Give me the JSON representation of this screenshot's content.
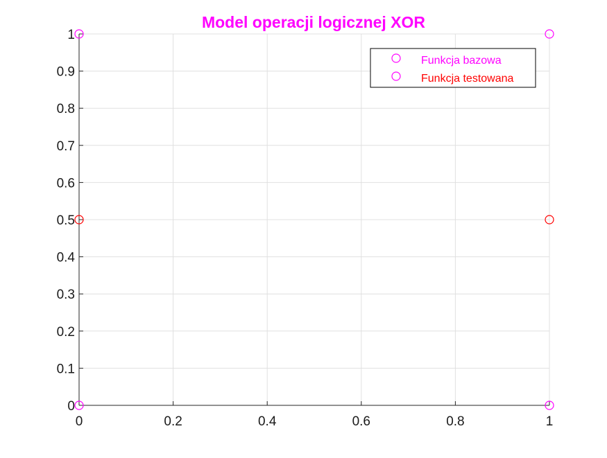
{
  "chart_data": {
    "type": "scatter",
    "title": "Model operacji logicznej XOR",
    "xlabel": "",
    "ylabel": "",
    "xlim": [
      0,
      1
    ],
    "ylim": [
      0,
      1
    ],
    "xticks": [
      0,
      0.2,
      0.4,
      0.6,
      0.8,
      1
    ],
    "xtick_labels": [
      "0",
      "0.2",
      "0.4",
      "0.6",
      "0.8",
      "1"
    ],
    "yticks": [
      0,
      0.1,
      0.2,
      0.3,
      0.4,
      0.5,
      0.6,
      0.7,
      0.8,
      0.9,
      1
    ],
    "ytick_labels": [
      "0",
      "0.1",
      "0.2",
      "0.3",
      "0.4",
      "0.5",
      "0.6",
      "0.7",
      "0.8",
      "0.9",
      "1"
    ],
    "grid": true,
    "legend_position": "top-right",
    "series": [
      {
        "name": "Funkcja bazowa",
        "color": "#ff00ff",
        "marker": "circle-open",
        "points": [
          {
            "x": 0,
            "y": 0
          },
          {
            "x": 0,
            "y": 1
          },
          {
            "x": 1,
            "y": 1
          },
          {
            "x": 1,
            "y": 0
          }
        ]
      },
      {
        "name": "Funkcja testowana",
        "color": "#ff0000",
        "marker": "circle-open",
        "points": [
          {
            "x": 0,
            "y": 0.5
          },
          {
            "x": 1,
            "y": 0.5
          }
        ]
      }
    ],
    "title_color": "#ff00ff",
    "legend_marker_color": "#ff00ff"
  }
}
